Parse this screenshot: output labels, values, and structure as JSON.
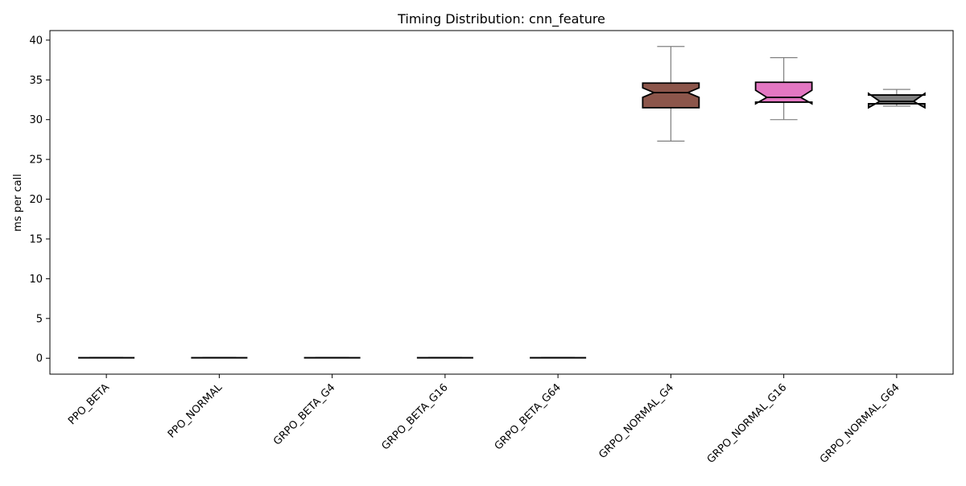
{
  "chart_data": {
    "type": "boxplot",
    "title": "Timing Distribution: cnn_feature",
    "xlabel": "",
    "ylabel": "ms per call",
    "ylim": [
      -2,
      41.2
    ],
    "yticks": [
      0,
      5,
      10,
      15,
      20,
      25,
      30,
      35,
      40
    ],
    "notched": true,
    "grid": false,
    "categories": [
      "PPO_BETA",
      "PPO_NORMAL",
      "GRPO_BETA_G4",
      "GRPO_BETA_G16",
      "GRPO_BETA_G64",
      "GRPO_NORMAL_G4",
      "GRPO_NORMAL_G16",
      "GRPO_NORMAL_G64"
    ],
    "boxes": [
      {
        "category": "PPO_BETA",
        "whisker_low": 0.05,
        "q1": 0.05,
        "median": 0.06,
        "q3": 0.07,
        "whisker_high": 0.08,
        "notch_low": 0.05,
        "notch_high": 0.07,
        "color": "#1f77b4"
      },
      {
        "category": "PPO_NORMAL",
        "whisker_low": 0.05,
        "q1": 0.05,
        "median": 0.06,
        "q3": 0.07,
        "whisker_high": 0.08,
        "notch_low": 0.05,
        "notch_high": 0.07,
        "color": "#ff7f0e"
      },
      {
        "category": "GRPO_BETA_G4",
        "whisker_low": 0.05,
        "q1": 0.05,
        "median": 0.06,
        "q3": 0.07,
        "whisker_high": 0.08,
        "notch_low": 0.05,
        "notch_high": 0.07,
        "color": "#2ca02c"
      },
      {
        "category": "GRPO_BETA_G16",
        "whisker_low": 0.05,
        "q1": 0.05,
        "median": 0.06,
        "q3": 0.07,
        "whisker_high": 0.08,
        "notch_low": 0.05,
        "notch_high": 0.07,
        "color": "#d62728"
      },
      {
        "category": "GRPO_BETA_G64",
        "whisker_low": 0.05,
        "q1": 0.05,
        "median": 0.06,
        "q3": 0.07,
        "whisker_high": 0.08,
        "notch_low": 0.05,
        "notch_high": 0.07,
        "color": "#9467bd"
      },
      {
        "category": "GRPO_NORMAL_G4",
        "whisker_low": 27.3,
        "q1": 31.5,
        "median": 33.4,
        "q3": 34.6,
        "whisker_high": 39.2,
        "notch_low": 32.8,
        "notch_high": 34.0,
        "color": "#8c564b"
      },
      {
        "category": "GRPO_NORMAL_G16",
        "whisker_low": 30.0,
        "q1": 32.2,
        "median": 32.8,
        "q3": 34.7,
        "whisker_high": 37.8,
        "notch_low": 32.0,
        "notch_high": 33.7,
        "color": "#e377c2"
      },
      {
        "category": "GRPO_NORMAL_G64",
        "whisker_low": 31.7,
        "q1": 32.0,
        "median": 32.3,
        "q3": 33.1,
        "whisker_high": 33.8,
        "notch_low": 31.5,
        "notch_high": 33.3,
        "color": "#7f7f7f"
      }
    ]
  }
}
